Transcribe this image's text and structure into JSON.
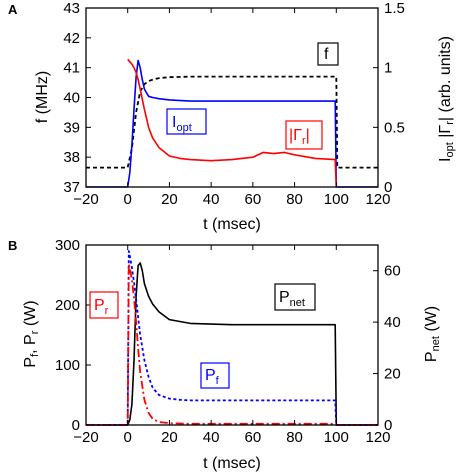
{
  "colors": {
    "blue": "#0000ff",
    "red": "#ff0000",
    "black": "#000000"
  },
  "chart_data": [
    {
      "panel_label": "A",
      "type": "line",
      "xlabel": "t (msec)",
      "ylabel": "f (MHz)",
      "ylabel_right": [
        "I",
        "opt",
        " |Γ",
        "r",
        "| (arb. units)"
      ],
      "xlim": [
        -20,
        120
      ],
      "ylim": [
        37,
        43
      ],
      "ylim_right": [
        0,
        1.5
      ],
      "xticks": [
        -20,
        0,
        20,
        40,
        60,
        80,
        100,
        120
      ],
      "yticks": [
        37,
        38,
        39,
        40,
        41,
        42,
        43
      ],
      "yticks_right": [
        "0",
        "0.5",
        "1",
        "1.5"
      ],
      "yticks_right_values": [
        0,
        0.5,
        1,
        1.5
      ],
      "series": [
        {
          "name": "f",
          "axis": "left",
          "style": "dashed",
          "color": "#000000",
          "x": [
            -20,
            0,
            2,
            4,
            6,
            8,
            10,
            12,
            15,
            20,
            30,
            50,
            99.5,
            100,
            100.5,
            120
          ],
          "y": [
            37.65,
            37.65,
            38.3,
            39.5,
            40.2,
            40.45,
            40.55,
            40.6,
            40.65,
            40.68,
            40.7,
            40.7,
            40.7,
            40.7,
            37.65,
            37.65
          ]
        },
        {
          "name": "I_opt",
          "axis": "right",
          "style": "solid",
          "color": "#0000ff",
          "x": [
            -20,
            0,
            1,
            2,
            3,
            4,
            5,
            6,
            7,
            8,
            10,
            12,
            15,
            20,
            30,
            40,
            60,
            80,
            99.5,
            100,
            120
          ],
          "y": [
            0,
            0,
            0.12,
            0.35,
            0.65,
            0.92,
            1.06,
            1.0,
            0.9,
            0.82,
            0.76,
            0.75,
            0.74,
            0.73,
            0.72,
            0.72,
            0.72,
            0.72,
            0.72,
            0,
            0
          ]
        },
        {
          "name": "|Γ_r|",
          "axis": "right",
          "style": "solid",
          "color": "#ff0000",
          "x": [
            0,
            1,
            2,
            3,
            4,
            5,
            6,
            8,
            10,
            12,
            15,
            20,
            25,
            30,
            40,
            50,
            60,
            65,
            70,
            75,
            80,
            90,
            99.5,
            100
          ],
          "y": [
            1.07,
            1.05,
            1.03,
            1.0,
            0.96,
            0.9,
            0.82,
            0.65,
            0.5,
            0.41,
            0.33,
            0.26,
            0.24,
            0.23,
            0.22,
            0.23,
            0.25,
            0.29,
            0.28,
            0.29,
            0.27,
            0.24,
            0.23,
            0
          ]
        }
      ],
      "annotations": [
        {
          "text": "I",
          "sub": "opt",
          "color": "#0000ff"
        },
        {
          "text": "|Γ",
          "sub": "r",
          "tail": "|",
          "color": "#ff0000"
        },
        {
          "text": "f",
          "color": "#000000"
        }
      ]
    },
    {
      "panel_label": "B",
      "type": "line",
      "xlabel": "t (msec)",
      "ylabel": [
        "P",
        "f",
        ", P",
        "r",
        " (W)"
      ],
      "ylabel_right": [
        "P",
        "net",
        " (W)"
      ],
      "xlim": [
        -20,
        120
      ],
      "ylim": [
        0,
        300
      ],
      "ylim_right": [
        0,
        70
      ],
      "xticks": [
        -20,
        0,
        20,
        40,
        60,
        80,
        100,
        120
      ],
      "yticks": [
        0,
        100,
        200,
        300
      ],
      "yticks_right": [
        "0",
        "20",
        "40",
        "60"
      ],
      "yticks_right_values": [
        0,
        20,
        40,
        60
      ],
      "series": [
        {
          "name": "P_net",
          "axis": "right",
          "style": "solid",
          "color": "#000000",
          "x": [
            -20,
            0,
            1,
            2,
            3,
            4,
            5,
            6,
            7,
            8,
            10,
            12,
            15,
            20,
            30,
            50,
            80,
            99.5,
            100,
            120
          ],
          "y": [
            0,
            0,
            2,
            8,
            25,
            50,
            62,
            63,
            60,
            55,
            50,
            47,
            44,
            41,
            39.5,
            39,
            39,
            39,
            0,
            0
          ]
        },
        {
          "name": "P_f",
          "axis": "left",
          "style": "dotted",
          "color": "#0000ff",
          "x": [
            -20,
            0,
            0.5,
            1,
            2,
            3,
            4,
            5,
            6,
            8,
            10,
            12,
            15,
            20,
            25,
            30,
            50,
            80,
            99.5,
            100,
            120
          ],
          "y": [
            0,
            0,
            290,
            282,
            262,
            238,
            210,
            180,
            150,
            108,
            80,
            62,
            50,
            44,
            42,
            41,
            41,
            41,
            41,
            0,
            0
          ]
        },
        {
          "name": "P_r",
          "axis": "left",
          "style": "dashdot",
          "color": "#ff0000",
          "x": [
            -20,
            0,
            0.5,
            1,
            2,
            3,
            4,
            5,
            6,
            8,
            10,
            12,
            15,
            20,
            30,
            60,
            99.5,
            100,
            120
          ],
          "y": [
            0,
            0,
            268,
            262,
            242,
            212,
            172,
            128,
            88,
            42,
            20,
            10,
            5,
            3,
            2,
            2,
            2,
            0,
            0
          ]
        }
      ],
      "annotations": [
        {
          "text": "P",
          "sub": "r",
          "color": "#ff0000"
        },
        {
          "text": "P",
          "sub": "net",
          "color": "#000000"
        },
        {
          "text": "P",
          "sub": "f",
          "color": "#0000ff"
        }
      ]
    }
  ]
}
